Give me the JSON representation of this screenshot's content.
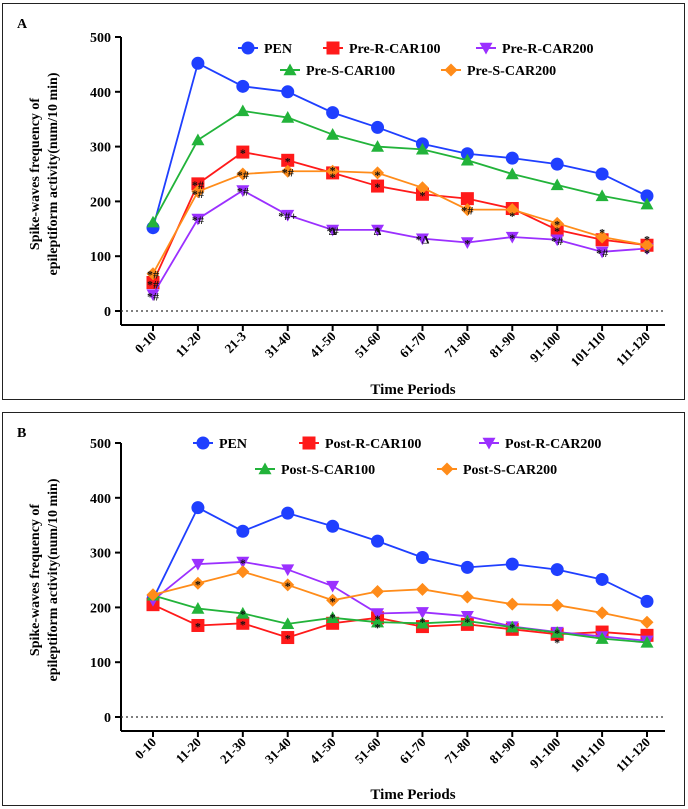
{
  "colors": {
    "PEN": "#1f3fff",
    "R100": "#ff1a1a",
    "R200": "#9b30ff",
    "S100": "#22b33a",
    "S200": "#ff8c1a"
  },
  "chart_data": [
    {
      "type": "line",
      "panel_label": "A",
      "ylabel_line1": "Spike-waves frequency of",
      "ylabel_line2": "epileptiform activity(num/10 min)",
      "xlabel": "Time Periods",
      "ylim": [
        0,
        500
      ],
      "yticks": [
        0,
        100,
        200,
        300,
        400,
        500
      ],
      "reference_line": 0,
      "legend_placement": "top",
      "categories": [
        "0-10",
        "11-20",
        "21-3",
        "31-40",
        "41-50",
        "51-60",
        "61-70",
        "71-80",
        "81-90",
        "91-100",
        "101-110",
        "111-120"
      ],
      "series": [
        {
          "name": "PEN",
          "marker": "circle",
          "color_key": "PEN",
          "values": [
            152,
            452,
            410,
            400,
            362,
            335,
            305,
            287,
            279,
            268,
            250,
            210
          ]
        },
        {
          "name": "Pre-R-CAR100",
          "marker": "square",
          "color_key": "R100",
          "values": [
            52,
            232,
            290,
            275,
            252,
            228,
            213,
            205,
            187,
            148,
            130,
            120
          ]
        },
        {
          "name": "Pre-R-CAR200",
          "marker": "triangle-down",
          "color_key": "R200",
          "values": [
            30,
            168,
            220,
            175,
            148,
            148,
            132,
            125,
            135,
            130,
            108,
            114
          ]
        },
        {
          "name": "Pre-S-CAR100",
          "marker": "triangle-up",
          "color_key": "S100",
          "values": [
            162,
            312,
            365,
            353,
            322,
            300,
            295,
            275,
            250,
            230,
            210,
            195
          ]
        },
        {
          "name": "Pre-S-CAR200",
          "marker": "diamond",
          "color_key": "S200",
          "values": [
            68,
            218,
            250,
            255,
            255,
            252,
            225,
            185,
            185,
            160,
            135,
            120
          ]
        }
      ],
      "annotations": [
        {
          "text": "*#",
          "x": "0-10",
          "y": 68
        },
        {
          "text": "*#",
          "x": "0-10",
          "y": 50
        },
        {
          "text": "*#",
          "x": "0-10",
          "y": 28
        },
        {
          "text": "*#",
          "x": "11-20",
          "y": 232
        },
        {
          "text": "*#",
          "x": "11-20",
          "y": 215
        },
        {
          "text": "*#",
          "x": "11-20",
          "y": 168
        },
        {
          "text": "*",
          "x": "21-3",
          "y": 290
        },
        {
          "text": "*#",
          "x": "21-3",
          "y": 250
        },
        {
          "text": "*#",
          "x": "21-3",
          "y": 220
        },
        {
          "text": "*",
          "x": "31-40",
          "y": 275
        },
        {
          "text": "*#",
          "x": "31-40",
          "y": 255
        },
        {
          "text": "*#+",
          "x": "31-40",
          "y": 175
        },
        {
          "text": "*",
          "x": "41-50",
          "y": 258
        },
        {
          "text": "*",
          "x": "41-50",
          "y": 246
        },
        {
          "text": "*#",
          "x": "41-50",
          "y": 148
        },
        {
          "text": "Δ",
          "x": "41-50",
          "y": 148
        },
        {
          "text": "*",
          "x": "51-60",
          "y": 250
        },
        {
          "text": "*",
          "x": "51-60",
          "y": 228
        },
        {
          "text": "*",
          "x": "51-60",
          "y": 148
        },
        {
          "text": "Δ",
          "x": "51-60",
          "y": 148
        },
        {
          "text": "*",
          "x": "61-70",
          "y": 213
        },
        {
          "text": "*Δ",
          "x": "61-70",
          "y": 132
        },
        {
          "text": "*#",
          "x": "71-80",
          "y": 185
        },
        {
          "text": "*",
          "x": "71-80",
          "y": 125
        },
        {
          "text": "*",
          "x": "81-90",
          "y": 175
        },
        {
          "text": "*",
          "x": "81-90",
          "y": 135
        },
        {
          "text": "*",
          "x": "91-100",
          "y": 160
        },
        {
          "text": "*",
          "x": "91-100",
          "y": 148
        },
        {
          "text": "*#",
          "x": "91-100",
          "y": 130
        },
        {
          "text": "*",
          "x": "101-110",
          "y": 145
        },
        {
          "text": "*#",
          "x": "101-110",
          "y": 108
        },
        {
          "text": "*",
          "x": "111-120",
          "y": 132
        },
        {
          "text": "*",
          "x": "111-120",
          "y": 108
        }
      ]
    },
    {
      "type": "line",
      "panel_label": "B",
      "ylabel_line1": "Spike-waves frequency of",
      "ylabel_line2": "epileptiform activity(num/10 min)",
      "xlabel": "Time Periods",
      "ylim": [
        0,
        500
      ],
      "yticks": [
        0,
        100,
        200,
        300,
        400,
        500
      ],
      "reference_line": 0,
      "legend_placement": "top",
      "categories": [
        "0-10",
        "11-20",
        "21-30",
        "31-40",
        "41-50",
        "51-60",
        "61-70",
        "71-80",
        "81-90",
        "91-100",
        "101-110",
        "111-120"
      ],
      "series": [
        {
          "name": "PEN",
          "marker": "circle",
          "color_key": "PEN",
          "values": [
            215,
            382,
            339,
            372,
            348,
            321,
            291,
            273,
            279,
            269,
            251,
            211
          ]
        },
        {
          "name": "Post-R-CAR100",
          "marker": "square",
          "color_key": "R100",
          "values": [
            205,
            167,
            171,
            145,
            171,
            181,
            165,
            169,
            160,
            151,
            155,
            149
          ]
        },
        {
          "name": "Post-R-CAR200",
          "marker": "triangle-down",
          "color_key": "R200",
          "values": [
            213,
            279,
            283,
            269,
            239,
            189,
            191,
            184,
            165,
            155,
            147,
            139
          ]
        },
        {
          "name": "Post-S-CAR100",
          "marker": "triangle-up",
          "color_key": "S100",
          "values": [
            222,
            198,
            189,
            170,
            181,
            173,
            171,
            175,
            164,
            154,
            143,
            136
          ]
        },
        {
          "name": "Post-S-CAR200",
          "marker": "diamond",
          "color_key": "S200",
          "values": [
            223,
            244,
            265,
            241,
            213,
            229,
            233,
            219,
            206,
            204,
            190,
            173
          ]
        }
      ],
      "annotations": [
        {
          "text": "*",
          "x": "11-20",
          "y": 244
        },
        {
          "text": "*",
          "x": "11-20",
          "y": 167
        },
        {
          "text": "*",
          "x": "21-30",
          "y": 283
        },
        {
          "text": "*",
          "x": "21-30",
          "y": 190
        },
        {
          "text": "*",
          "x": "21-30",
          "y": 171
        },
        {
          "text": "*",
          "x": "31-40",
          "y": 241
        },
        {
          "text": "*",
          "x": "31-40",
          "y": 145
        },
        {
          "text": "*",
          "x": "41-50",
          "y": 213
        },
        {
          "text": "*",
          "x": "41-50",
          "y": 183
        },
        {
          "text": "*",
          "x": "51-60",
          "y": 181
        },
        {
          "text": "*",
          "x": "51-60",
          "y": 165
        },
        {
          "text": "*",
          "x": "61-70",
          "y": 175
        },
        {
          "text": "*",
          "x": "71-80",
          "y": 175
        },
        {
          "text": "*",
          "x": "81-90",
          "y": 165
        },
        {
          "text": "*",
          "x": "91-100",
          "y": 155
        },
        {
          "text": "*",
          "x": "91-100",
          "y": 138
        }
      ]
    }
  ]
}
